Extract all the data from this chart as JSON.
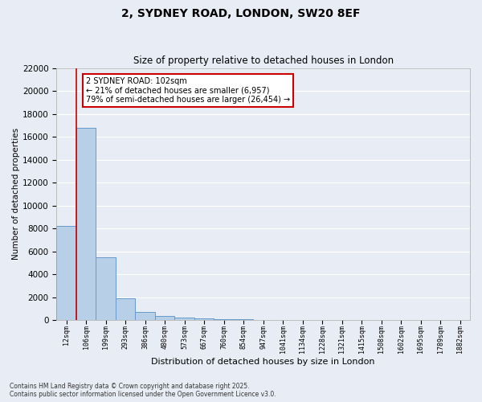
{
  "title1": "2, SYDNEY ROAD, LONDON, SW20 8EF",
  "title2": "Size of property relative to detached houses in London",
  "xlabel": "Distribution of detached houses by size in London",
  "ylabel": "Number of detached properties",
  "bar_labels": [
    "12sqm",
    "106sqm",
    "199sqm",
    "293sqm",
    "386sqm",
    "480sqm",
    "573sqm",
    "667sqm",
    "760sqm",
    "854sqm",
    "947sqm",
    "1041sqm",
    "1134sqm",
    "1228sqm",
    "1321sqm",
    "1415sqm",
    "1508sqm",
    "1602sqm",
    "1695sqm",
    "1789sqm",
    "1882sqm"
  ],
  "bar_values": [
    8200,
    16800,
    5450,
    1900,
    700,
    380,
    200,
    150,
    100,
    100,
    0,
    0,
    0,
    0,
    0,
    0,
    0,
    0,
    0,
    0,
    0
  ],
  "bar_color": "#b8cfe8",
  "bar_edge_color": "#6699cc",
  "background_color": "#e8edf5",
  "grid_color": "#ffffff",
  "vline_color": "#cc0000",
  "annotation_text": "2 SYDNEY ROAD: 102sqm\n← 21% of detached houses are smaller (6,957)\n79% of semi-detached houses are larger (26,454) →",
  "annotation_box_facecolor": "#ffffff",
  "annotation_box_edgecolor": "#cc0000",
  "ylim": [
    0,
    22000
  ],
  "yticks": [
    0,
    2000,
    4000,
    6000,
    8000,
    10000,
    12000,
    14000,
    16000,
    18000,
    20000,
    22000
  ],
  "footnote1": "Contains HM Land Registry data © Crown copyright and database right 2025.",
  "footnote2": "Contains public sector information licensed under the Open Government Licence v3.0."
}
